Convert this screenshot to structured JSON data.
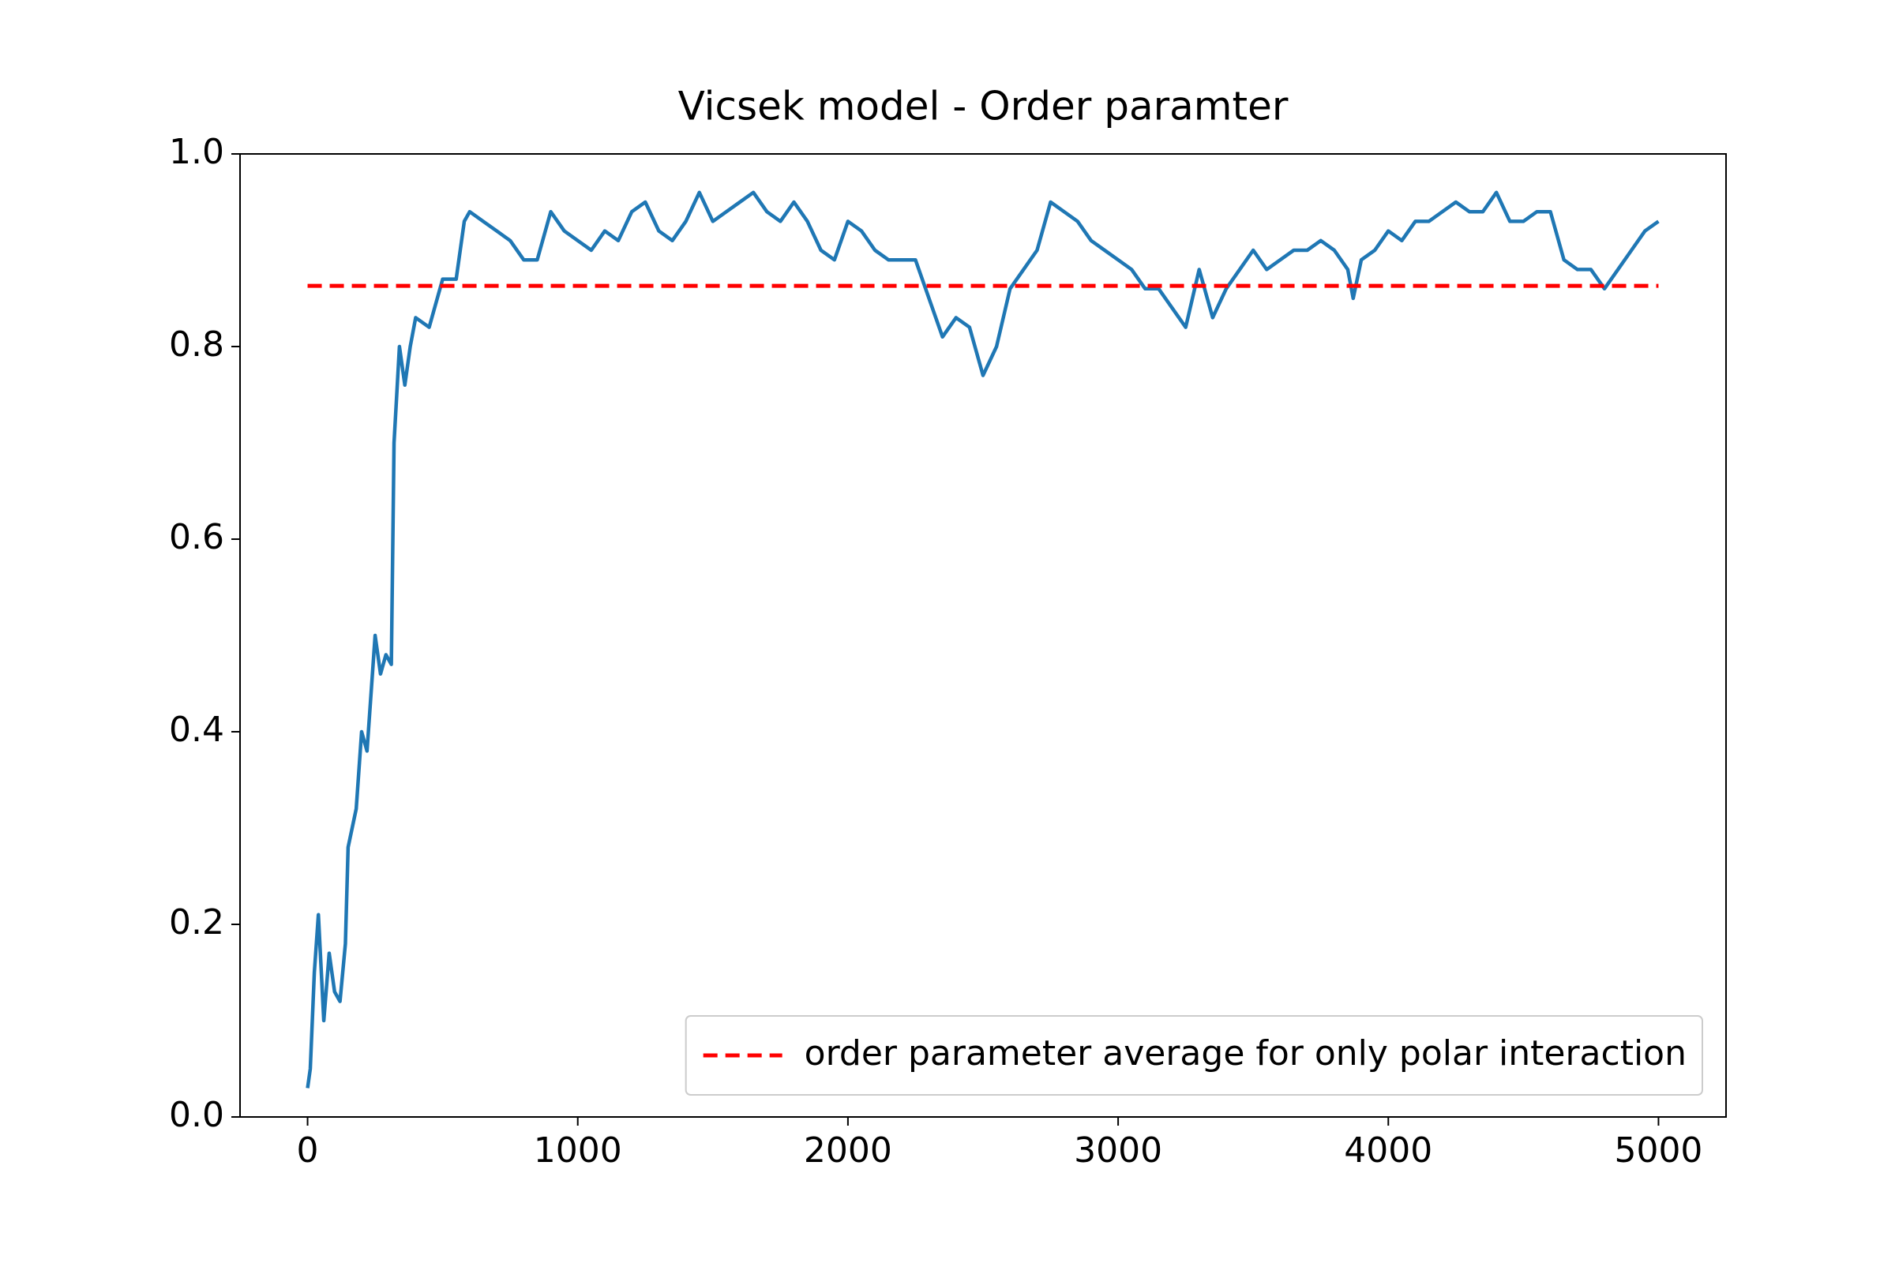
{
  "chart_data": {
    "type": "line",
    "title": "Vicsek model - Order paramter",
    "xlim": [
      -250,
      5250
    ],
    "ylim": [
      0,
      1
    ],
    "xticks": [
      0,
      1000,
      2000,
      3000,
      4000,
      5000
    ],
    "yticks": [
      {
        "value": 0,
        "label": "0.0"
      },
      0.2,
      0.4,
      0.6,
      0.8,
      {
        "value": 1,
        "label": "1.0"
      }
    ],
    "legend": "lower right",
    "series": [
      {
        "color": "#1f77b4",
        "style": "solid",
        "x": [
          0,
          10,
          25,
          40,
          60,
          80,
          100,
          120,
          140,
          150,
          180,
          200,
          220,
          230,
          250,
          270,
          290,
          310,
          320,
          340,
          360,
          380,
          400,
          450,
          500,
          550,
          580,
          600,
          650,
          700,
          750,
          800,
          850,
          900,
          950,
          1000,
          1050,
          1100,
          1150,
          1200,
          1250,
          1300,
          1350,
          1400,
          1450,
          1500,
          1550,
          1600,
          1650,
          1700,
          1750,
          1800,
          1850,
          1900,
          1950,
          2000,
          2050,
          2100,
          2150,
          2200,
          2250,
          2300,
          2350,
          2400,
          2450,
          2500,
          2550,
          2600,
          2650,
          2700,
          2750,
          2800,
          2850,
          2900,
          2950,
          3000,
          3050,
          3100,
          3150,
          3200,
          3250,
          3300,
          3350,
          3400,
          3450,
          3500,
          3550,
          3600,
          3650,
          3700,
          3750,
          3800,
          3850,
          3870,
          3900,
          3950,
          4000,
          4050,
          4100,
          4150,
          4200,
          4250,
          4300,
          4350,
          4400,
          4450,
          4500,
          4550,
          4600,
          4650,
          4700,
          4750,
          4800,
          4850,
          4900,
          4950,
          5000
        ],
        "values": [
          0.03,
          0.05,
          0.15,
          0.21,
          0.1,
          0.17,
          0.13,
          0.12,
          0.18,
          0.28,
          0.32,
          0.4,
          0.38,
          0.42,
          0.5,
          0.46,
          0.48,
          0.47,
          0.7,
          0.8,
          0.76,
          0.8,
          0.83,
          0.82,
          0.87,
          0.87,
          0.93,
          0.94,
          0.93,
          0.92,
          0.91,
          0.89,
          0.89,
          0.94,
          0.92,
          0.91,
          0.9,
          0.92,
          0.91,
          0.94,
          0.95,
          0.92,
          0.91,
          0.93,
          0.96,
          0.93,
          0.94,
          0.95,
          0.96,
          0.94,
          0.93,
          0.95,
          0.93,
          0.9,
          0.89,
          0.93,
          0.92,
          0.9,
          0.89,
          0.89,
          0.89,
          0.85,
          0.81,
          0.83,
          0.82,
          0.77,
          0.8,
          0.86,
          0.88,
          0.9,
          0.95,
          0.94,
          0.93,
          0.91,
          0.9,
          0.89,
          0.88,
          0.86,
          0.86,
          0.84,
          0.82,
          0.88,
          0.83,
          0.86,
          0.88,
          0.9,
          0.88,
          0.89,
          0.9,
          0.9,
          0.91,
          0.9,
          0.88,
          0.85,
          0.89,
          0.9,
          0.92,
          0.91,
          0.93,
          0.93,
          0.94,
          0.95,
          0.94,
          0.94,
          0.96,
          0.93,
          0.93,
          0.94,
          0.94,
          0.89,
          0.88,
          0.88,
          0.86,
          0.88,
          0.9,
          0.92,
          0.93
        ]
      },
      {
        "name": "order parameter average for only polar interaction",
        "color": "#ff0000",
        "style": "dashed",
        "x": [
          0,
          5000
        ],
        "values": [
          0.863,
          0.863
        ]
      }
    ]
  }
}
